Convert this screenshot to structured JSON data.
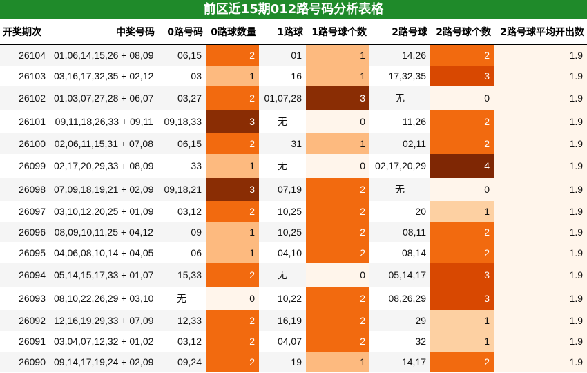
{
  "title": "前区近15期012路号码分析表格",
  "headers": [
    "开奖期次",
    "中奖号码",
    "0路号码",
    "0路球数量",
    "1路球",
    "1路号球个数",
    "2路号球",
    "2路号球个数",
    "2路号球平均开出数"
  ],
  "rows": [
    {
      "issue": "26104",
      "numbers": "01,06,14,15,26 + 08,09",
      "r0": "06,15",
      "r0c": 2,
      "r1": "01",
      "r1c": 1,
      "r2": "14,26",
      "r2c": 2,
      "avg": "1.9"
    },
    {
      "issue": "26103",
      "numbers": "03,16,17,32,35 + 02,12",
      "r0": "03",
      "r0c": 1,
      "r1": "16",
      "r1c": 1,
      "r2": "17,32,35",
      "r2c": 3,
      "avg": "1.9"
    },
    {
      "issue": "26102",
      "numbers": "01,03,07,27,28 + 06,07",
      "r0": "03,27",
      "r0c": 2,
      "r1": "01,07,28",
      "r1c": 3,
      "r2": "无",
      "r2c": 0,
      "avg": "1.9"
    },
    {
      "issue": "26101",
      "numbers": "09,11,18,26,33 + 09,11",
      "r0": "09,18,33",
      "r0c": 3,
      "r1": "无",
      "r1c": 0,
      "r2": "11,26",
      "r2c": 2,
      "avg": "1.9"
    },
    {
      "issue": "26100",
      "numbers": "02,06,11,15,31 + 07,08",
      "r0": "06,15",
      "r0c": 2,
      "r1": "31",
      "r1c": 1,
      "r2": "02,11",
      "r2c": 2,
      "avg": "1.9"
    },
    {
      "issue": "26099",
      "numbers": "02,17,20,29,33 + 08,09",
      "r0": "33",
      "r0c": 1,
      "r1": "无",
      "r1c": 0,
      "r2": "02,17,20,29",
      "r2c": 4,
      "avg": "1.9"
    },
    {
      "issue": "26098",
      "numbers": "07,09,18,19,21 + 02,09",
      "r0": "09,18,21",
      "r0c": 3,
      "r1": "07,19",
      "r1c": 2,
      "r2": "无",
      "r2c": 0,
      "avg": "1.9"
    },
    {
      "issue": "26097",
      "numbers": "03,10,12,20,25 + 01,09",
      "r0": "03,12",
      "r0c": 2,
      "r1": "10,25",
      "r1c": 2,
      "r2": "20",
      "r2c": 1,
      "avg": "1.9"
    },
    {
      "issue": "26096",
      "numbers": "08,09,10,11,25 + 04,12",
      "r0": "09",
      "r0c": 1,
      "r1": "10,25",
      "r1c": 2,
      "r2": "08,11",
      "r2c": 2,
      "avg": "1.9"
    },
    {
      "issue": "26095",
      "numbers": "04,06,08,10,14 + 04,05",
      "r0": "06",
      "r0c": 1,
      "r1": "04,10",
      "r1c": 2,
      "r2": "08,14",
      "r2c": 2,
      "avg": "1.9"
    },
    {
      "issue": "26094",
      "numbers": "05,14,15,17,33 + 01,07",
      "r0": "15,33",
      "r0c": 2,
      "r1": "无",
      "r1c": 0,
      "r2": "05,14,17",
      "r2c": 3,
      "avg": "1.9"
    },
    {
      "issue": "26093",
      "numbers": "08,10,22,26,29 + 03,10",
      "r0": "无",
      "r0c": 0,
      "r1": "10,22",
      "r1c": 2,
      "r2": "08,26,29",
      "r2c": 3,
      "avg": "1.9"
    },
    {
      "issue": "26092",
      "numbers": "12,16,19,29,33 + 07,09",
      "r0": "12,33",
      "r0c": 2,
      "r1": "16,19",
      "r1c": 2,
      "r2": "29",
      "r2c": 1,
      "avg": "1.9"
    },
    {
      "issue": "26091",
      "numbers": "03,04,07,12,32 + 01,02",
      "r0": "03,12",
      "r0c": 2,
      "r1": "04,07",
      "r1c": 2,
      "r2": "32",
      "r2c": 1,
      "avg": "1.9"
    },
    {
      "issue": "26090",
      "numbers": "09,14,17,19,24 + 02,09",
      "r0": "09,24",
      "r0c": 2,
      "r1": "19",
      "r1c": 1,
      "r2": "14,17",
      "r2c": 2,
      "avg": "1.9"
    }
  ],
  "colors": {
    "title_bg": "#1f8a2a",
    "count_0": "#fff5eb",
    "count_1": "#fdba7f",
    "count_2": "#f26a0f",
    "count_3": "#d84801",
    "count_4": "#7f2704"
  }
}
